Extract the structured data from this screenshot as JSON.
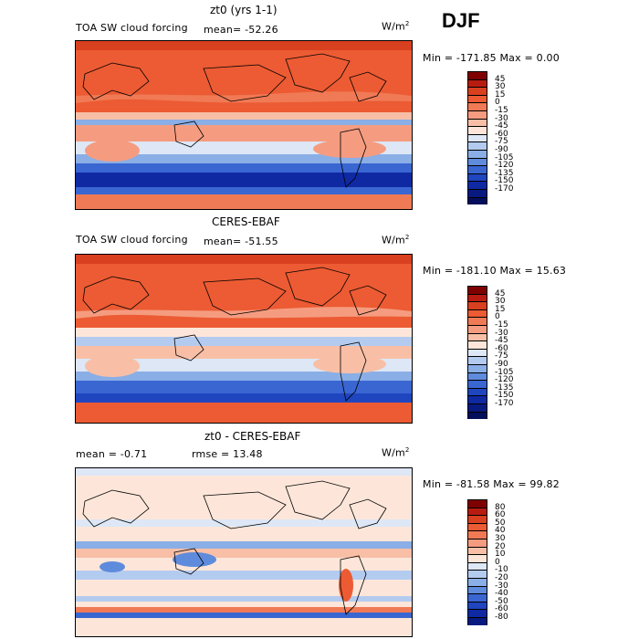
{
  "season": "DJF",
  "panels": [
    {
      "id": "model",
      "title": "zt0 (yrs 1-1)",
      "left_label": "TOA SW cloud forcing",
      "mid_label": "mean=  -52.26",
      "units": "W/m",
      "units_exp": "2",
      "minmax": "Min = -171.85 Max =    0.00",
      "colorbar": {
        "colors": [
          "#7f0000",
          "#b81c10",
          "#d8401f",
          "#ec5b33",
          "#f07a55",
          "#f59c80",
          "#f8bfa6",
          "#fde6d9",
          "#dde7f6",
          "#b4cbf0",
          "#8aaee6",
          "#5f8bdc",
          "#3a66d2",
          "#1f45bf",
          "#0f29a3",
          "#081a80",
          "#040e5a"
        ],
        "labels": [
          "45",
          "30",
          "15",
          "0",
          "-15",
          "-30",
          "-45",
          "-60",
          "-75",
          "-90",
          "-105",
          "-120",
          "-135",
          "-150",
          "-170"
        ]
      }
    },
    {
      "id": "obs",
      "title": "CERES-EBAF",
      "left_label": "TOA SW cloud forcing",
      "mid_label": "mean=  -51.55",
      "units": "W/m",
      "units_exp": "2",
      "minmax": "Min = -181.10 Max =  15.63",
      "colorbar": {
        "colors": [
          "#7f0000",
          "#b81c10",
          "#d8401f",
          "#ec5b33",
          "#f07a55",
          "#f59c80",
          "#f8bfa6",
          "#fde6d9",
          "#dde7f6",
          "#b4cbf0",
          "#8aaee6",
          "#5f8bdc",
          "#3a66d2",
          "#1f45bf",
          "#0f29a3",
          "#081a80",
          "#040e5a"
        ],
        "labels": [
          "45",
          "30",
          "15",
          "0",
          "-15",
          "-30",
          "-45",
          "-60",
          "-75",
          "-90",
          "-105",
          "-120",
          "-135",
          "-150",
          "-170"
        ]
      }
    },
    {
      "id": "diff",
      "title": "zt0 - CERES-EBAF",
      "left_label": "mean =   -0.71",
      "mid_label": "rmse =   13.48",
      "units": "W/m",
      "units_exp": "2",
      "minmax": "Min = -81.58 Max =  99.82",
      "colorbar": {
        "colors": [
          "#7f0000",
          "#b81c10",
          "#d8401f",
          "#ec5b33",
          "#f07a55",
          "#f59c80",
          "#f8bfa6",
          "#fde6d9",
          "#dde7f6",
          "#b4cbf0",
          "#8aaee6",
          "#5f8bdc",
          "#3a66d2",
          "#1f45bf",
          "#0f29a3",
          "#081a80"
        ],
        "labels": [
          "80",
          "60",
          "50",
          "40",
          "30",
          "20",
          "10",
          "0",
          "-10",
          "-20",
          "-30",
          "-40",
          "-50",
          "-60",
          "-80"
        ]
      }
    }
  ]
}
